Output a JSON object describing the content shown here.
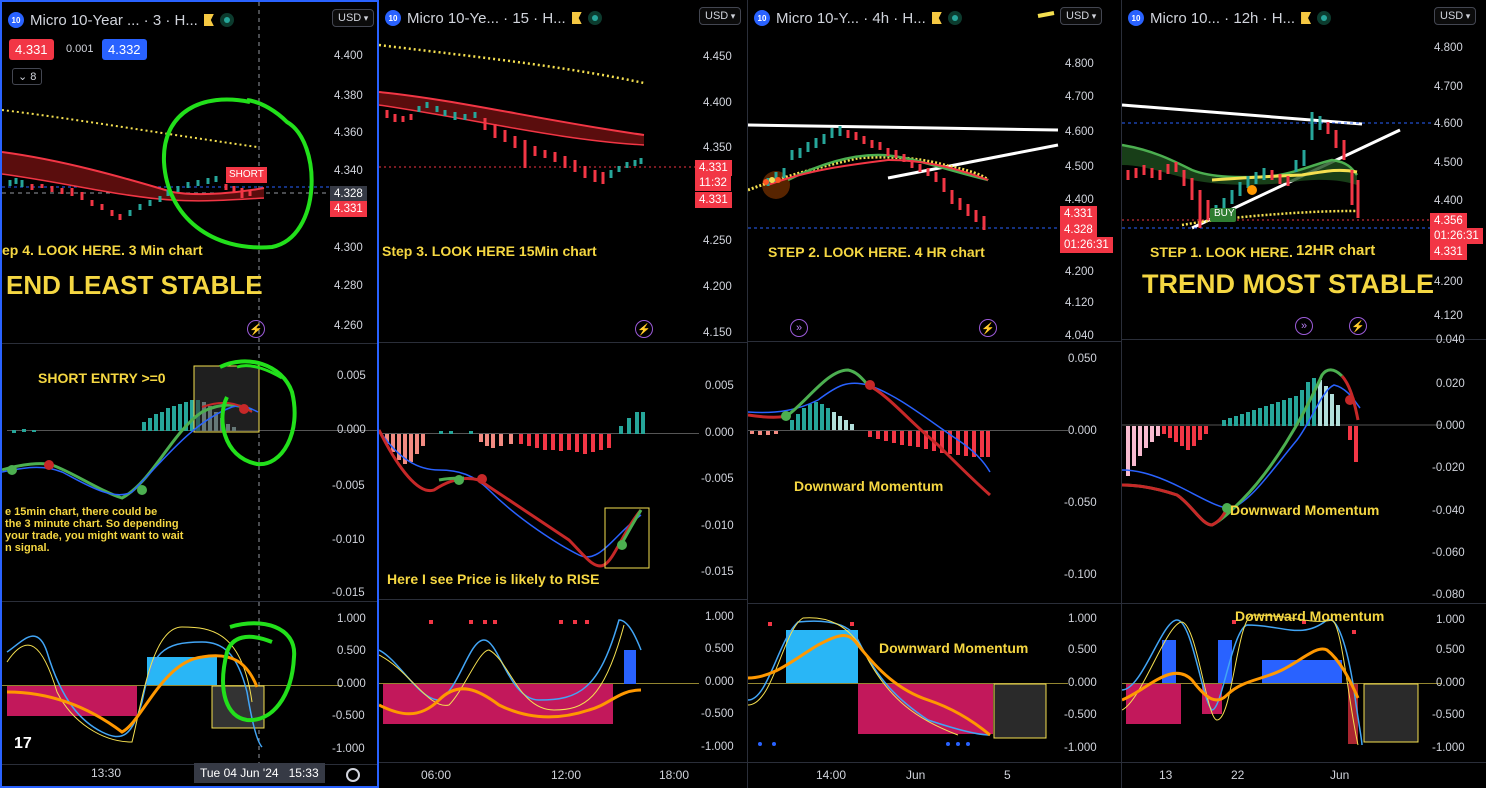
{
  "charts": [
    {
      "title": "Micro 10-Year ... · 3 · H...",
      "currency": "USD",
      "bid": "4.331",
      "spread": "0.001",
      "ask": "4.332",
      "indicator_count": "8",
      "price_axis": [
        "4.400",
        "4.380",
        "4.360",
        "4.340",
        "4.320",
        "4.300",
        "4.280",
        "4.260"
      ],
      "price_boxes": [
        "4.328",
        "4.331"
      ],
      "signal_label": "SHORT",
      "note_step": "ep 4. LOOK HERE. 3 Min chart",
      "note_trend": "END LEAST STABLE",
      "macd_axis": [
        "0.005",
        "0.000",
        "-0.005",
        "-0.010",
        "-0.015"
      ],
      "macd_note": "SHORT ENTRY >=0",
      "info_lines": [
        "e 15min chart, there could be",
        "the 3 minute chart. So depending",
        "your trade, you might want to wait",
        "n signal."
      ],
      "osc_axis": [
        "1.000",
        "0.500",
        "0.000",
        "-0.500",
        "-1.000"
      ],
      "time_axis": [
        "13:30"
      ],
      "crosshair_date": "Tue 04 Jun '24",
      "crosshair_time": "15:33"
    },
    {
      "title": "Micro 10-Ye... · 15 · H...",
      "currency": "USD",
      "price_axis": [
        "4.450",
        "4.400",
        "4.350",
        "4.300",
        "4.250",
        "4.200",
        "4.150"
      ],
      "price_boxes": [
        "4.331",
        "11:32",
        "4.331"
      ],
      "note_step": "Step 3. LOOK HERE 15Min chart",
      "macd_axis": [
        "0.005",
        "0.000",
        "-0.005",
        "-0.010",
        "-0.015"
      ],
      "macd_note": "Here I see Price is likely to RISE",
      "osc_axis": [
        "1.000",
        "0.500",
        "0.000",
        "-0.500",
        "-1.000"
      ],
      "time_axis": [
        "06:00",
        "12:00",
        "18:00"
      ]
    },
    {
      "title": "Micro 10-Y... · 4h · H...",
      "currency": "USD",
      "price_axis": [
        "4.800",
        "4.700",
        "4.600",
        "4.500",
        "4.400",
        "4.300",
        "4.200",
        "4.120",
        "4.040"
      ],
      "price_boxes": [
        "4.331",
        "4.328",
        "01:26:31"
      ],
      "note_step": "STEP 2. LOOK HERE. 4 HR chart",
      "macd_axis": [
        "0.050",
        "0.000",
        "-0.050",
        "-0.100"
      ],
      "macd_note": "Downward Momentum",
      "osc_axis": [
        "1.000",
        "0.500",
        "0.000",
        "-0.500",
        "-1.000"
      ],
      "osc_note": "Downward Momentum",
      "time_axis": [
        "14:00",
        "Jun",
        "5"
      ]
    },
    {
      "title": "Micro 10... · 12h · H...",
      "currency": "USD",
      "price_axis": [
        "4.800",
        "4.700",
        "4.600",
        "4.500",
        "4.400",
        "4.300",
        "4.200",
        "4.120"
      ],
      "price_boxes": [
        "4.356",
        "01:26:31",
        "4.331"
      ],
      "signal_label": "BUY",
      "note_step": "STEP 1. LOOK HERE.",
      "note_step2": "12HR chart",
      "note_trend": "TREND MOST STABLE",
      "macd_axis": [
        "0.040",
        "0.020",
        "0.000",
        "-0.020",
        "-0.040",
        "-0.060",
        "-0.080"
      ],
      "macd_note": "Downward Momentum",
      "osc_axis": [
        "1.000",
        "0.500",
        "0.000",
        "-0.500",
        "-1.000"
      ],
      "osc_note": "Downward Momentum",
      "time_axis": [
        "13",
        "22",
        "Jun"
      ]
    }
  ]
}
